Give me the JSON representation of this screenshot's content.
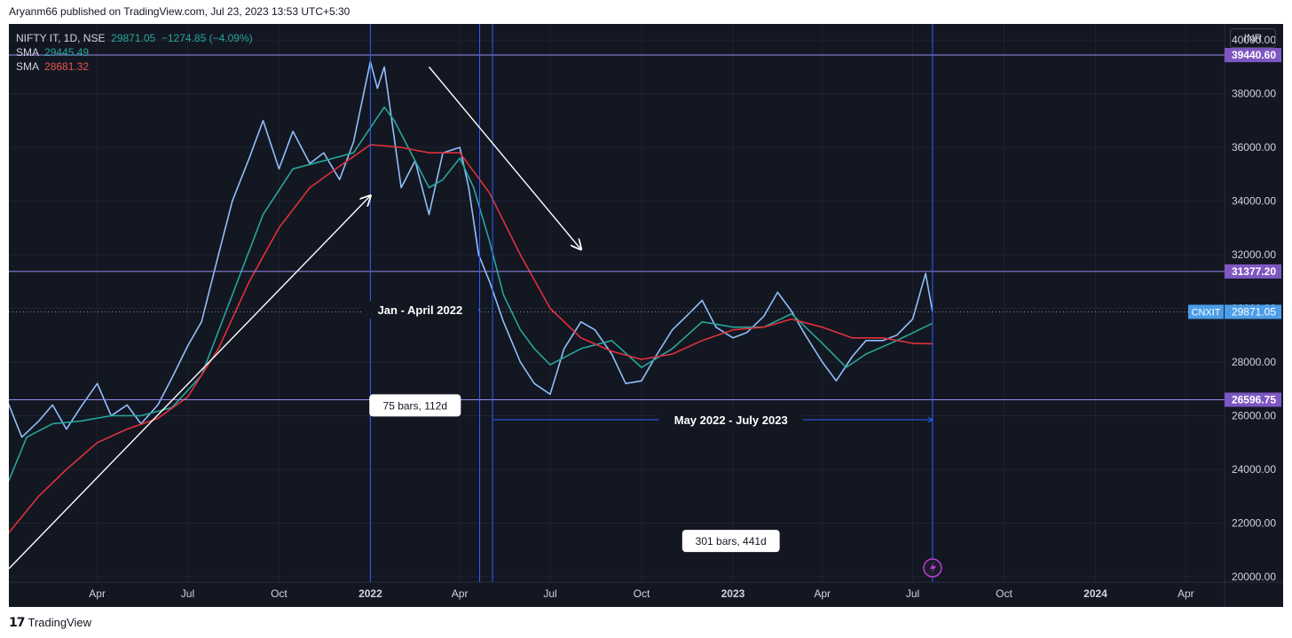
{
  "header": {
    "published_by": "Aryanm66 published on TradingView.com, Jul 23, 2023 13:53 UTC+5:30"
  },
  "legend": {
    "symbol": "NIFTY IT, 1D, NSE",
    "price": "29871.05",
    "change": "−1274.85 (−4.09%)",
    "sma1_label": "SMA",
    "sma1_value": "29445.49",
    "sma2_label": "SMA",
    "sma2_value": "28681.32"
  },
  "currency": "INR",
  "footer": {
    "brand": "TradingView",
    "logo": "tv-logo-icon"
  },
  "colors": {
    "background": "#131722",
    "price_line": "#90bff9",
    "sma_fast": "#26a69a",
    "sma_slow": "#e0303c",
    "hline": "#9c8cf0",
    "vline": "#2962ff",
    "text": "#d1d4dc"
  },
  "chart_data": {
    "type": "line",
    "symbol": "NIFTY IT",
    "interval": "1D",
    "exchange": "NSE",
    "ylim": [
      19800,
      40600
    ],
    "x_range": [
      "2021-01-02",
      "2024-05-10"
    ],
    "x_ticks": [
      {
        "label": "Apr",
        "date": "2021-04-01"
      },
      {
        "label": "Jul",
        "date": "2021-07-01"
      },
      {
        "label": "Oct",
        "date": "2021-10-01"
      },
      {
        "label": "2022",
        "date": "2022-01-01",
        "bold": true
      },
      {
        "label": "Apr",
        "date": "2022-04-01"
      },
      {
        "label": "Jul",
        "date": "2022-07-01"
      },
      {
        "label": "Oct",
        "date": "2022-10-01"
      },
      {
        "label": "2023",
        "date": "2023-01-01",
        "bold": true
      },
      {
        "label": "Apr",
        "date": "2023-04-01"
      },
      {
        "label": "Jul",
        "date": "2023-07-01"
      },
      {
        "label": "Oct",
        "date": "2023-10-01"
      },
      {
        "label": "2024",
        "date": "2024-01-01",
        "bold": true
      },
      {
        "label": "Apr",
        "date": "2024-04-01"
      }
    ],
    "y_ticks": [
      "20000.00",
      "22000.00",
      "24000.00",
      "26000.00",
      "28000.00",
      "30000.00",
      "32000.00",
      "34000.00",
      "36000.00",
      "38000.00",
      "40000.00"
    ],
    "series": [
      {
        "role": "price",
        "points": [
          [
            "2021-01-01",
            26500
          ],
          [
            "2021-01-15",
            25200
          ],
          [
            "2021-02-01",
            25800
          ],
          [
            "2021-02-15",
            26400
          ],
          [
            "2021-03-01",
            25500
          ],
          [
            "2021-03-15",
            26300
          ],
          [
            "2021-04-01",
            27200
          ],
          [
            "2021-04-15",
            26000
          ],
          [
            "2021-05-01",
            26400
          ],
          [
            "2021-05-15",
            25700
          ],
          [
            "2021-06-01",
            26400
          ],
          [
            "2021-06-15",
            27400
          ],
          [
            "2021-07-01",
            28600
          ],
          [
            "2021-07-15",
            29500
          ],
          [
            "2021-08-01",
            32000
          ],
          [
            "2021-08-15",
            34000
          ],
          [
            "2021-09-01",
            35600
          ],
          [
            "2021-09-15",
            37000
          ],
          [
            "2021-10-01",
            35200
          ],
          [
            "2021-10-15",
            36600
          ],
          [
            "2021-11-01",
            35400
          ],
          [
            "2021-11-15",
            35800
          ],
          [
            "2021-12-01",
            34800
          ],
          [
            "2021-12-15",
            36200
          ],
          [
            "2022-01-01",
            39200
          ],
          [
            "2022-01-08",
            38200
          ],
          [
            "2022-01-15",
            39000
          ],
          [
            "2022-02-01",
            34500
          ],
          [
            "2022-02-15",
            35500
          ],
          [
            "2022-03-01",
            33500
          ],
          [
            "2022-03-15",
            35800
          ],
          [
            "2022-04-01",
            36000
          ],
          [
            "2022-04-10",
            34500
          ],
          [
            "2022-04-20",
            32000
          ],
          [
            "2022-05-01",
            31000
          ],
          [
            "2022-05-15",
            29500
          ],
          [
            "2022-06-01",
            28000
          ],
          [
            "2022-06-15",
            27200
          ],
          [
            "2022-07-01",
            26800
          ],
          [
            "2022-07-15",
            28500
          ],
          [
            "2022-08-01",
            29500
          ],
          [
            "2022-08-15",
            29200
          ],
          [
            "2022-09-01",
            28300
          ],
          [
            "2022-09-15",
            27200
          ],
          [
            "2022-10-01",
            27300
          ],
          [
            "2022-10-15",
            28200
          ],
          [
            "2022-11-01",
            29200
          ],
          [
            "2022-11-15",
            29700
          ],
          [
            "2022-12-01",
            30300
          ],
          [
            "2022-12-15",
            29300
          ],
          [
            "2023-01-01",
            28900
          ],
          [
            "2023-01-15",
            29100
          ],
          [
            "2023-02-01",
            29700
          ],
          [
            "2023-02-15",
            30600
          ],
          [
            "2023-03-01",
            29900
          ],
          [
            "2023-03-15",
            29000
          ],
          [
            "2023-04-01",
            28000
          ],
          [
            "2023-04-15",
            27300
          ],
          [
            "2023-05-01",
            28200
          ],
          [
            "2023-05-15",
            28800
          ],
          [
            "2023-06-01",
            28800
          ],
          [
            "2023-06-15",
            29000
          ],
          [
            "2023-07-01",
            29600
          ],
          [
            "2023-07-14",
            31300
          ],
          [
            "2023-07-21",
            29871
          ]
        ]
      },
      {
        "role": "sma_fast",
        "points": [
          [
            "2021-01-01",
            23500
          ],
          [
            "2021-01-20",
            25200
          ],
          [
            "2021-02-15",
            25700
          ],
          [
            "2021-03-15",
            25800
          ],
          [
            "2021-04-15",
            26000
          ],
          [
            "2021-05-15",
            26000
          ],
          [
            "2021-06-15",
            26300
          ],
          [
            "2021-07-15",
            27500
          ],
          [
            "2021-08-15",
            30500
          ],
          [
            "2021-09-15",
            33500
          ],
          [
            "2021-10-15",
            35200
          ],
          [
            "2021-11-15",
            35500
          ],
          [
            "2021-12-15",
            35800
          ],
          [
            "2022-01-15",
            37500
          ],
          [
            "2022-01-25",
            37000
          ],
          [
            "2022-02-15",
            35500
          ],
          [
            "2022-03-01",
            34500
          ],
          [
            "2022-03-15",
            34800
          ],
          [
            "2022-04-01",
            35600
          ],
          [
            "2022-04-15",
            34500
          ],
          [
            "2022-05-01",
            32500
          ],
          [
            "2022-05-15",
            30500
          ],
          [
            "2022-06-01",
            29200
          ],
          [
            "2022-06-15",
            28500
          ],
          [
            "2022-07-01",
            27900
          ],
          [
            "2022-08-01",
            28500
          ],
          [
            "2022-09-01",
            28800
          ],
          [
            "2022-10-01",
            27800
          ],
          [
            "2022-11-01",
            28500
          ],
          [
            "2022-12-01",
            29500
          ],
          [
            "2023-01-01",
            29300
          ],
          [
            "2023-02-01",
            29300
          ],
          [
            "2023-03-01",
            29800
          ],
          [
            "2023-04-01",
            28700
          ],
          [
            "2023-04-25",
            27800
          ],
          [
            "2023-05-15",
            28300
          ],
          [
            "2023-06-15",
            28800
          ],
          [
            "2023-07-21",
            29445
          ]
        ]
      },
      {
        "role": "sma_slow",
        "points": [
          [
            "2021-01-01",
            21600
          ],
          [
            "2021-02-01",
            23000
          ],
          [
            "2021-03-01",
            24000
          ],
          [
            "2021-04-01",
            25000
          ],
          [
            "2021-05-01",
            25500
          ],
          [
            "2021-06-01",
            25900
          ],
          [
            "2021-07-01",
            26700
          ],
          [
            "2021-08-01",
            28500
          ],
          [
            "2021-09-01",
            31000
          ],
          [
            "2021-10-01",
            33000
          ],
          [
            "2021-11-01",
            34500
          ],
          [
            "2021-12-01",
            35300
          ],
          [
            "2022-01-01",
            36100
          ],
          [
            "2022-02-01",
            36000
          ],
          [
            "2022-03-01",
            35800
          ],
          [
            "2022-04-01",
            35800
          ],
          [
            "2022-05-01",
            34300
          ],
          [
            "2022-06-01",
            32000
          ],
          [
            "2022-07-01",
            30000
          ],
          [
            "2022-08-01",
            28900
          ],
          [
            "2022-09-01",
            28400
          ],
          [
            "2022-10-01",
            28100
          ],
          [
            "2022-11-01",
            28300
          ],
          [
            "2022-12-01",
            28800
          ],
          [
            "2023-01-01",
            29200
          ],
          [
            "2023-02-01",
            29300
          ],
          [
            "2023-03-01",
            29600
          ],
          [
            "2023-04-01",
            29300
          ],
          [
            "2023-05-01",
            28900
          ],
          [
            "2023-06-01",
            28900
          ],
          [
            "2023-07-01",
            28700
          ],
          [
            "2023-07-21",
            28681
          ]
        ]
      }
    ],
    "price_labels": [
      {
        "text": "39440.60",
        "y": 39440.6,
        "style": "level"
      },
      {
        "text": "31377.20",
        "y": 31377.2,
        "style": "level"
      },
      {
        "text": "26596.75",
        "y": 26596.75,
        "style": "level"
      },
      {
        "symbol": "CNXIT",
        "text": "29871.05",
        "y": 29871.05,
        "style": "last"
      }
    ],
    "annotations": {
      "horizontal_lines": [
        39440.6,
        31377.2,
        26596.75
      ],
      "vertical_lines": [
        "2022-01-01",
        "2022-04-21",
        "2022-05-04",
        "2023-07-21"
      ],
      "labels": [
        {
          "text": "Jan - April 2022",
          "date": "2022-02-20",
          "y": 29950
        },
        {
          "text": "May 2022 - July 2023",
          "date": "2022-12-30",
          "y": 25850
        }
      ],
      "boxes": [
        {
          "text": "75 bars, 112d",
          "date": "2022-02-15",
          "y": 26400
        },
        {
          "text": "301 bars, 441d",
          "date": "2022-12-30",
          "y": 21350
        }
      ]
    }
  }
}
